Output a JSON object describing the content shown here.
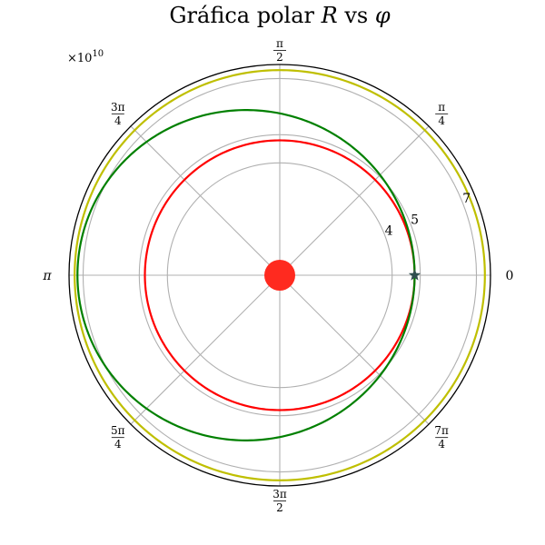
{
  "chart_data": {
    "type": "line",
    "projection": "polar",
    "title": "Gráfica polar R vs φ",
    "title_parts": {
      "text": "Gráfica polar ",
      "var_r": "R",
      "mid": " vs ",
      "var_phi": "φ"
    },
    "radial_multiplier": {
      "base": "×10",
      "exponent": "10"
    },
    "r_ticks": [
      4,
      5,
      7
    ],
    "r_tick_labels": [
      "4",
      "5",
      "7"
    ],
    "rlim": [
      0,
      7.5
    ],
    "grid": true,
    "angle_ticks": [
      {
        "label": "0",
        "num": "",
        "den": ""
      },
      {
        "label": "",
        "num": "π",
        "den": "4"
      },
      {
        "label": "",
        "num": "π",
        "den": "2"
      },
      {
        "label": "",
        "num": "3π",
        "den": "4"
      },
      {
        "label": "π",
        "num": "",
        "den": ""
      },
      {
        "label": "",
        "num": "5π",
        "den": "4"
      },
      {
        "label": "",
        "num": "3π",
        "den": "2"
      },
      {
        "label": "",
        "num": "7π",
        "den": "4"
      }
    ],
    "series": [
      {
        "kind": "circle_orbit",
        "color": "#ff0000",
        "a": 4.8,
        "e": 0.0
      },
      {
        "kind": "ellipse_orbit",
        "color": "#008000",
        "a": 6.0,
        "e": 0.2
      },
      {
        "kind": "circle_orbit",
        "color": "#bfbf00",
        "a": 7.3,
        "e": 0.0
      }
    ],
    "markers": [
      {
        "kind": "sun",
        "r": 0,
        "phi": 0,
        "color": "#ff2a1f"
      },
      {
        "kind": "star",
        "r": 4.8,
        "phi": 0,
        "color": "#2f4f4f"
      }
    ]
  }
}
